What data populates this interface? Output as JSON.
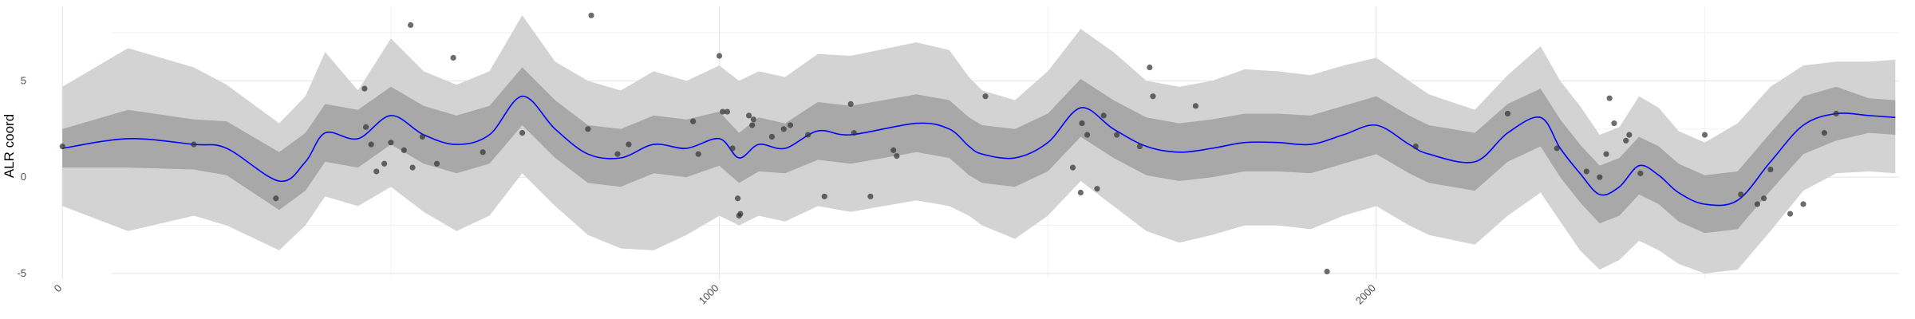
{
  "chart_data": {
    "type": "line",
    "title": "",
    "xlabel": "",
    "ylabel": "ALR coord",
    "xlim": [
      -95,
      2820
    ],
    "ylim": [
      -5.5,
      9.2
    ],
    "x_ticks": [
      0,
      1000,
      2000
    ],
    "x_tick_labels": [
      "0",
      "1000",
      "2000"
    ],
    "y_ticks": [
      -5,
      0,
      5
    ],
    "y_tick_labels": [
      "-5",
      "0",
      "5"
    ],
    "grid": true,
    "colors": {
      "mean_line": "#0000ff",
      "inner_band": "#a8a8a8",
      "outer_band": "#d3d3d3",
      "points": "#333333"
    },
    "series": [
      {
        "kind": "mean",
        "x": [
          0,
          100,
          200,
          250,
          330,
          370,
          400,
          450,
          500,
          550,
          600,
          650,
          700,
          750,
          800,
          850,
          900,
          950,
          1000,
          1030,
          1060,
          1100,
          1150,
          1200,
          1300,
          1350,
          1380,
          1400,
          1450,
          1500,
          1550,
          1600,
          1650,
          1700,
          1750,
          1800,
          1850,
          1900,
          1950,
          2000,
          2050,
          2080,
          2150,
          2200,
          2250,
          2280,
          2310,
          2340,
          2370,
          2400,
          2430,
          2460,
          2500,
          2550,
          2600,
          2650,
          2700,
          2750,
          2790
        ],
        "y": [
          1.5,
          2.0,
          1.7,
          1.5,
          -0.2,
          0.8,
          2.3,
          2.0,
          3.2,
          2.2,
          1.7,
          2.2,
          4.2,
          2.5,
          1.2,
          1.0,
          1.7,
          1.5,
          2.0,
          1.0,
          1.7,
          1.5,
          2.4,
          2.2,
          2.8,
          2.5,
          1.6,
          1.2,
          1.0,
          1.8,
          3.6,
          2.5,
          1.6,
          1.3,
          1.5,
          1.8,
          1.8,
          1.7,
          2.2,
          2.7,
          1.7,
          1.2,
          0.8,
          2.3,
          3.1,
          1.5,
          0.2,
          -0.9,
          -0.5,
          0.6,
          0.1,
          -0.8,
          -1.4,
          -1.2,
          0.8,
          2.7,
          3.3,
          3.2,
          3.1
        ]
      },
      {
        "kind": "inner-band",
        "x": [
          0,
          100,
          200,
          250,
          330,
          370,
          400,
          450,
          500,
          550,
          600,
          650,
          700,
          750,
          800,
          850,
          900,
          950,
          1000,
          1030,
          1060,
          1100,
          1150,
          1200,
          1300,
          1350,
          1380,
          1400,
          1450,
          1500,
          1550,
          1600,
          1650,
          1700,
          1750,
          1800,
          1850,
          1900,
          1950,
          2000,
          2050,
          2080,
          2150,
          2200,
          2250,
          2280,
          2310,
          2340,
          2370,
          2400,
          2430,
          2460,
          2500,
          2550,
          2600,
          2650,
          2700,
          2750,
          2790
        ],
        "lower": [
          0.5,
          0.5,
          0.4,
          0.1,
          -1.7,
          -0.7,
          0.8,
          0.5,
          1.7,
          0.7,
          0.2,
          0.7,
          2.7,
          1.0,
          -0.3,
          -0.5,
          0.2,
          0.0,
          0.6,
          -0.3,
          0.3,
          0.2,
          0.9,
          0.7,
          1.3,
          1.0,
          0.1,
          -0.3,
          -0.5,
          0.3,
          2.1,
          1.0,
          0.1,
          -0.2,
          0.0,
          0.3,
          0.3,
          0.2,
          0.7,
          1.2,
          0.2,
          -0.3,
          -0.7,
          0.8,
          1.6,
          0.0,
          -1.3,
          -2.4,
          -2.0,
          -0.9,
          -1.4,
          -2.3,
          -2.9,
          -2.7,
          -0.7,
          1.2,
          1.9,
          2.3,
          2.2
        ],
        "upper": [
          2.5,
          3.5,
          3.0,
          2.9,
          1.3,
          2.3,
          3.8,
          3.5,
          4.7,
          3.7,
          3.2,
          3.7,
          5.7,
          4.0,
          2.7,
          2.5,
          3.2,
          3.0,
          3.4,
          2.3,
          3.1,
          2.8,
          3.9,
          3.7,
          4.3,
          4.0,
          3.1,
          2.7,
          2.5,
          3.3,
          5.1,
          4.0,
          3.1,
          2.8,
          3.0,
          3.3,
          3.3,
          3.2,
          3.7,
          4.2,
          3.2,
          2.7,
          2.3,
          3.8,
          4.6,
          3.0,
          1.7,
          0.6,
          1.0,
          2.1,
          1.6,
          0.7,
          0.1,
          0.3,
          2.3,
          4.2,
          4.7,
          4.1,
          4.0
        ]
      },
      {
        "kind": "outer-band",
        "x": [
          0,
          100,
          200,
          250,
          330,
          370,
          400,
          450,
          500,
          550,
          600,
          650,
          700,
          750,
          800,
          850,
          900,
          950,
          1000,
          1030,
          1060,
          1100,
          1150,
          1200,
          1300,
          1350,
          1380,
          1400,
          1450,
          1500,
          1550,
          1600,
          1650,
          1700,
          1750,
          1800,
          1850,
          1900,
          1950,
          2000,
          2050,
          2080,
          2150,
          2200,
          2250,
          2280,
          2310,
          2340,
          2370,
          2400,
          2430,
          2460,
          2500,
          2550,
          2600,
          2650,
          2700,
          2750,
          2790
        ],
        "lower": [
          -1.5,
          -2.8,
          -2.0,
          -2.5,
          -3.8,
          -2.5,
          -1.0,
          -1.5,
          -0.5,
          -1.8,
          -2.8,
          -2.0,
          0.2,
          -1.5,
          -3.0,
          -3.7,
          -3.8,
          -3.0,
          -2.0,
          -2.5,
          -2.0,
          -2.3,
          -1.5,
          -1.8,
          -1.2,
          -1.5,
          -2.0,
          -2.5,
          -3.2,
          -2.0,
          -0.2,
          -1.5,
          -2.8,
          -3.4,
          -3.0,
          -2.5,
          -2.5,
          -2.7,
          -2.0,
          -1.5,
          -2.5,
          -3.0,
          -3.5,
          -2.0,
          -0.8,
          -2.3,
          -3.8,
          -4.8,
          -4.3,
          -3.3,
          -3.8,
          -4.5,
          -5.0,
          -4.8,
          -2.8,
          -0.7,
          0.2,
          0.3,
          0.2
        ]
      },
      {
        "kind": "outer-band-upper",
        "upper": [
          4.7,
          6.7,
          5.7,
          4.8,
          2.8,
          4.2,
          6.5,
          4.5,
          7.2,
          5.5,
          4.8,
          5.5,
          8.4,
          6.0,
          5.0,
          4.5,
          5.5,
          5.0,
          5.8,
          5.0,
          5.5,
          5.2,
          6.4,
          6.3,
          7.0,
          6.6,
          5.2,
          4.5,
          4.0,
          5.5,
          7.7,
          6.5,
          5.0,
          4.7,
          5.0,
          5.6,
          5.5,
          5.3,
          5.8,
          6.2,
          5.0,
          4.3,
          3.5,
          5.3,
          6.8,
          5.0,
          3.7,
          2.2,
          2.6,
          4.2,
          3.6,
          2.4,
          1.8,
          2.8,
          4.7,
          5.8,
          6.0,
          6.0,
          6.1
        ]
      }
    ],
    "points": {
      "x": [
        0,
        200,
        325,
        460,
        462,
        470,
        478,
        490,
        500,
        520,
        530,
        533,
        548,
        570,
        595,
        640,
        700,
        800,
        805,
        845,
        862,
        960,
        968,
        1000,
        1005,
        1012,
        1020,
        1028,
        1030,
        1032,
        1045,
        1050,
        1052,
        1080,
        1098,
        1108,
        1135,
        1160,
        1200,
        1205,
        1230,
        1265,
        1270,
        1405,
        1538,
        1550,
        1552,
        1560,
        1575,
        1585,
        1605,
        1640,
        1655,
        1660,
        1725,
        1925,
        2060,
        2200,
        2275,
        2320,
        2340,
        2350,
        2355,
        2362,
        2380,
        2385,
        2402,
        2500,
        2555,
        2580,
        2590,
        2600,
        2630,
        2650,
        2682,
        2700
      ],
      "y": [
        1.6,
        1.7,
        -1.1,
        4.6,
        2.6,
        1.7,
        0.3,
        0.7,
        1.8,
        1.4,
        7.9,
        0.5,
        2.1,
        0.7,
        6.2,
        1.3,
        2.3,
        2.5,
        8.4,
        1.2,
        1.7,
        2.9,
        1.2,
        6.3,
        3.4,
        3.4,
        1.5,
        -1.1,
        -2.0,
        -1.9,
        3.2,
        2.7,
        3.0,
        2.1,
        2.5,
        2.7,
        2.2,
        -1.0,
        3.8,
        2.3,
        -1.0,
        1.4,
        1.1,
        4.2,
        0.5,
        -0.8,
        2.8,
        2.2,
        -0.6,
        3.2,
        2.2,
        1.6,
        5.7,
        4.2,
        3.7,
        -4.9,
        1.6,
        3.3,
        1.5,
        0.3,
        0.0,
        1.2,
        4.1,
        2.8,
        1.9,
        2.2,
        0.2,
        2.2,
        -0.9,
        -1.4,
        -1.1,
        0.4,
        -1.9,
        -1.4,
        2.3,
        3.3
      ]
    }
  }
}
